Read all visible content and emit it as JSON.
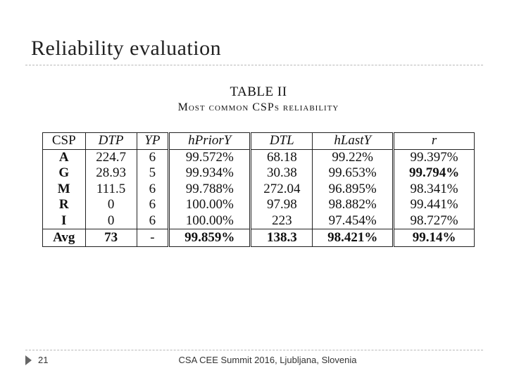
{
  "slide": {
    "title": "Reliability evaluation",
    "page_number": "21",
    "footer": "CSA CEE Summit 2016, Ljubljana, Slovenia"
  },
  "table": {
    "caption_number": "TABLE II",
    "caption_title": "Most common CSPs reliability",
    "headers": [
      "CSP",
      "DTP",
      "YP",
      "hPriorY",
      "DTL",
      "hLastY",
      "r"
    ],
    "rows": [
      [
        "A",
        "224.7",
        "6",
        "99.572%",
        "68.18",
        "99.22%",
        "99.397%"
      ],
      [
        "G",
        "28.93",
        "5",
        "99.934%",
        "30.38",
        "99.653%",
        "99.794%"
      ],
      [
        "M",
        "111.5",
        "6",
        "99.788%",
        "272.04",
        "96.895%",
        "98.341%"
      ],
      [
        "R",
        "0",
        "6",
        "100.00%",
        "97.98",
        "98.882%",
        "99.441%"
      ],
      [
        "I",
        "0",
        "6",
        "100.00%",
        "223",
        "97.454%",
        "98.727%"
      ]
    ],
    "avg_row": [
      "Avg",
      "73",
      "-",
      "99.859%",
      "138.3",
      "98.421%",
      "99.14%"
    ]
  }
}
